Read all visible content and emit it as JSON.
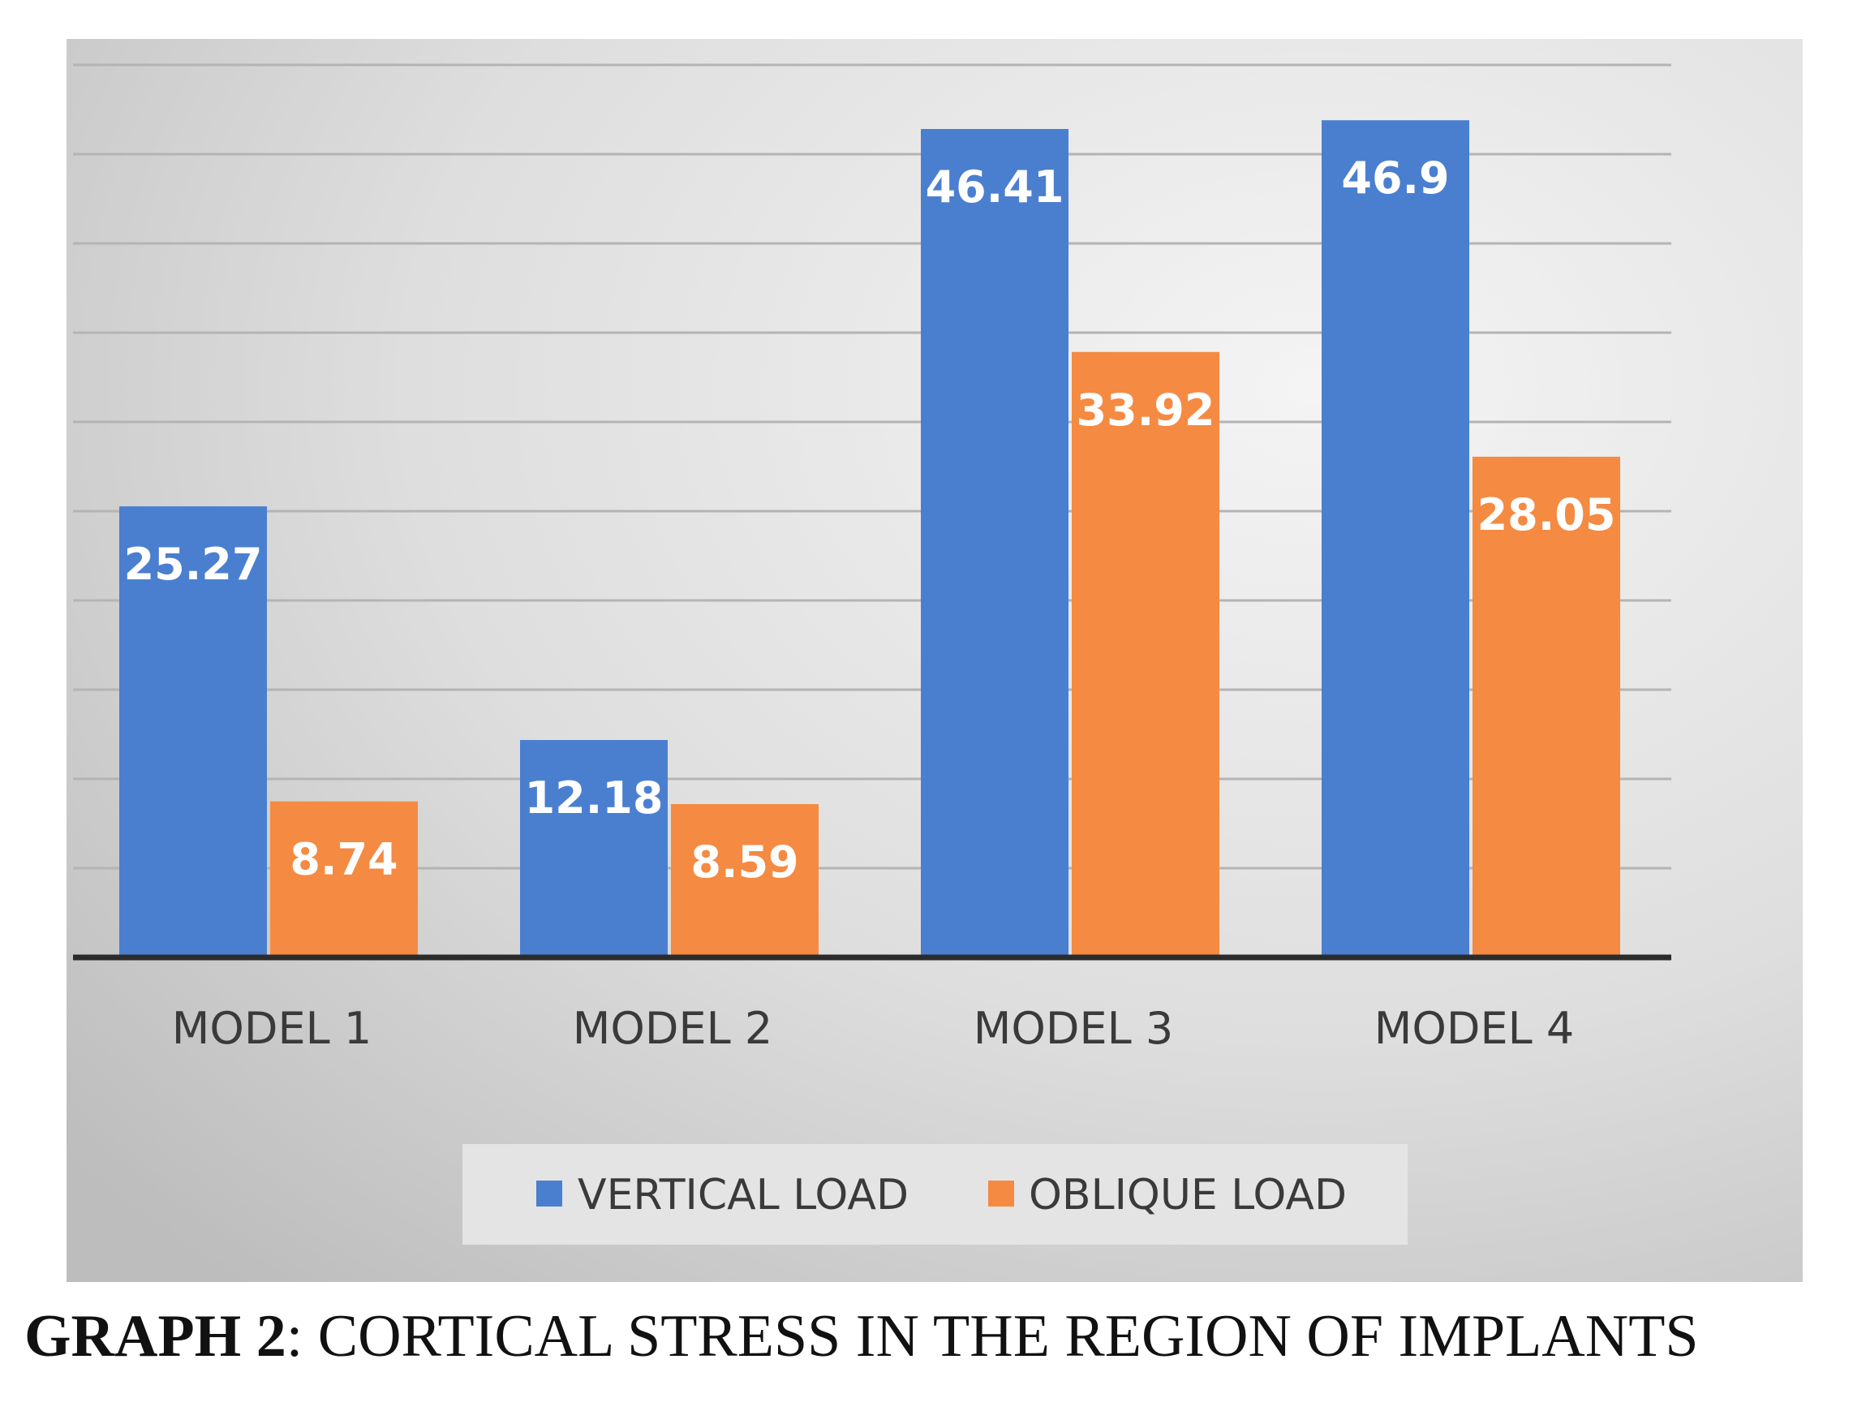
{
  "chart_data": {
    "type": "bar",
    "categories": [
      "MODEL 1",
      "MODEL 2",
      "MODEL 3",
      "MODEL 4"
    ],
    "series": [
      {
        "name": "VERTICAL LOAD",
        "values": [
          25.27,
          12.18,
          46.41,
          46.9
        ],
        "labels": [
          "25.27",
          "12.18",
          "46.41",
          "46.9"
        ],
        "color": "#4a7fd0"
      },
      {
        "name": "OBLIQUE LOAD",
        "values": [
          8.74,
          8.59,
          33.92,
          28.05
        ],
        "labels": [
          "8.74",
          "8.59",
          "33.92",
          "28.05"
        ],
        "color": "#f58a42"
      }
    ],
    "ylim": [
      0,
      50
    ],
    "gridlines": [
      5,
      10,
      15,
      20,
      25,
      30,
      35,
      40,
      45,
      50
    ],
    "grid": true,
    "legend_position": "bottom",
    "xlabel": "",
    "ylabel": ""
  },
  "caption": {
    "lead": "GRAPH 2",
    "text": ": CORTICAL STRESS IN THE REGION OF IMPLANTS"
  },
  "colors": {
    "label_text": "#ffffff",
    "tick_text": "#3a3a3a",
    "grid": "#b4b4b4",
    "axis": "#2b2b2b"
  }
}
